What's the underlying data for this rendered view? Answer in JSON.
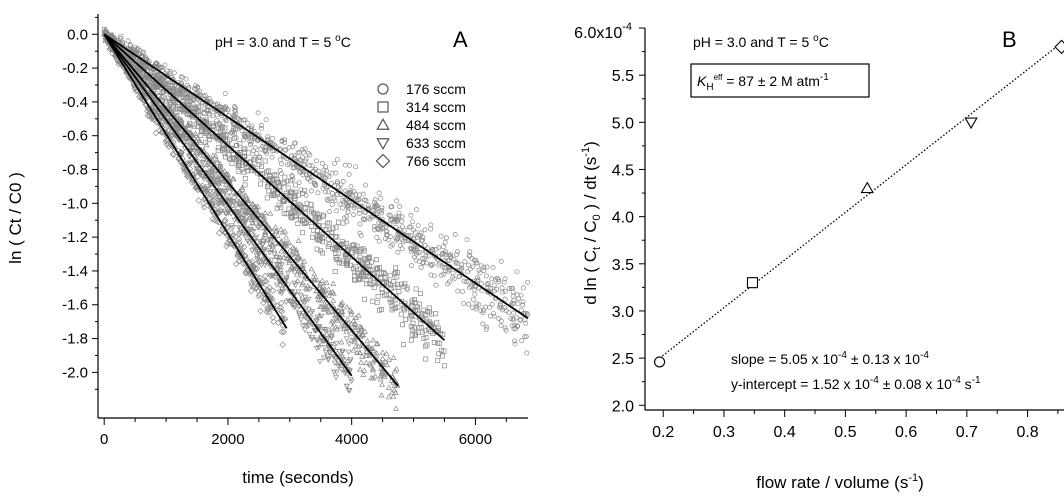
{
  "chart_data": [
    {
      "panel": "A",
      "type": "scatter",
      "xlabel": "time (seconds)",
      "ylabel": "ln ( Ct / C0 )",
      "annotation": {
        "prefix": "pH = 3.0 and T = 5 ",
        "sup": "o",
        "suffix": "C"
      },
      "xlim": [
        -100,
        6850
      ],
      "ylim": [
        -2.27,
        0.12
      ],
      "xticks": [
        0,
        2000,
        4000,
        6000
      ],
      "yticks": [
        0.0,
        -0.2,
        -0.4,
        -0.6,
        -0.8,
        -1.0,
        -1.2,
        -1.4,
        -1.6,
        -1.8,
        -2.0
      ],
      "ytick_labels": [
        "0.0",
        "-0.2",
        "-0.4",
        "-0.6",
        "-0.8",
        "-1.0",
        "-1.2",
        "-1.4",
        "-1.6",
        "-1.8",
        "-2.0"
      ],
      "xtick_labels": [
        "0",
        "2000",
        "4000",
        "6000"
      ],
      "grid": false,
      "legend_position": "top-right",
      "series": [
        {
          "name": "176 sccm",
          "marker": "circle",
          "slope": -0.000245,
          "x_end": 6850,
          "fit": [
            [
              0,
              0.0
            ],
            [
              6850,
              -1.68
            ]
          ]
        },
        {
          "name": "314 sccm",
          "marker": "square",
          "slope": -0.000329,
          "x_end": 5500,
          "fit": [
            [
              0,
              0.0
            ],
            [
              5500,
              -1.81
            ]
          ]
        },
        {
          "name": "484 sccm",
          "marker": "triangle-up",
          "slope": -0.000439,
          "x_end": 4750,
          "fit": [
            [
              0,
              0.0
            ],
            [
              4750,
              -2.08
            ]
          ]
        },
        {
          "name": "633 sccm",
          "marker": "triangle-down",
          "slope": -0.000505,
          "x_end": 4000,
          "fit": [
            [
              0,
              0.0
            ],
            [
              4000,
              -2.02
            ]
          ]
        },
        {
          "name": "766 sccm",
          "marker": "diamond",
          "slope": -0.00059,
          "x_end": 2950,
          "fit": [
            [
              0,
              0.0
            ],
            [
              2950,
              -1.74
            ]
          ]
        }
      ]
    },
    {
      "panel": "B",
      "type": "scatter",
      "xlabel": {
        "main": "flow rate / volume (s",
        "sup": "-1",
        "close": ")"
      },
      "ylabel": "d ln ( Ct / C0 ) / dt (s-1)",
      "annotation": {
        "prefix": "pH = 3.0 and T = 5 ",
        "sup": "o",
        "suffix": "C"
      },
      "kh_box": {
        "symbol": "K",
        "sub": "H",
        "sup": "eff",
        "value": " = 87 ± 2 M atm",
        "unit_sup": "-1"
      },
      "slope_text": {
        "a": "slope =  5.05 x 10",
        "a_sup": "-4",
        "b": " ± 0.13 x 10",
        "b_sup": "-4"
      },
      "intercept_text": {
        "a": "y-intercept =  1.52 x 10",
        "a_sup": "-4",
        "b": " ± 0.08 x 10",
        "b_sup": "-4",
        "c": " s",
        "c_sup": "-1"
      },
      "xlim": [
        0.17,
        0.86
      ],
      "ylim": [
        1.95,
        6.0
      ],
      "xticks": [
        0.2,
        0.3,
        0.4,
        0.5,
        0.6,
        0.7,
        0.8
      ],
      "xtick_labels": [
        "0.2",
        "0.3",
        "0.4",
        "0.5",
        "0.6",
        "0.7",
        "0.8"
      ],
      "yticks": [
        2.0,
        2.5,
        3.0,
        3.5,
        4.0,
        4.5,
        5.0,
        5.5
      ],
      "ytick_labels": [
        "2.0",
        "2.5",
        "3.0",
        "3.5",
        "4.0",
        "4.5",
        "5.0",
        "5.5"
      ],
      "ytop_label": {
        "main": "6.0x10",
        "sup": "-4"
      },
      "y_unit": "1e-4 s-1",
      "grid": false,
      "points": [
        {
          "x": 0.194,
          "y": 2.46,
          "marker": "circle"
        },
        {
          "x": 0.347,
          "y": 3.3,
          "marker": "square"
        },
        {
          "x": 0.536,
          "y": 4.3,
          "marker": "triangle-up"
        },
        {
          "x": 0.707,
          "y": 5.0,
          "marker": "triangle-down"
        },
        {
          "x": 0.856,
          "y": 5.8,
          "marker": "diamond"
        }
      ],
      "fit": {
        "slope": 5.05,
        "intercept": 1.52
      }
    }
  ]
}
